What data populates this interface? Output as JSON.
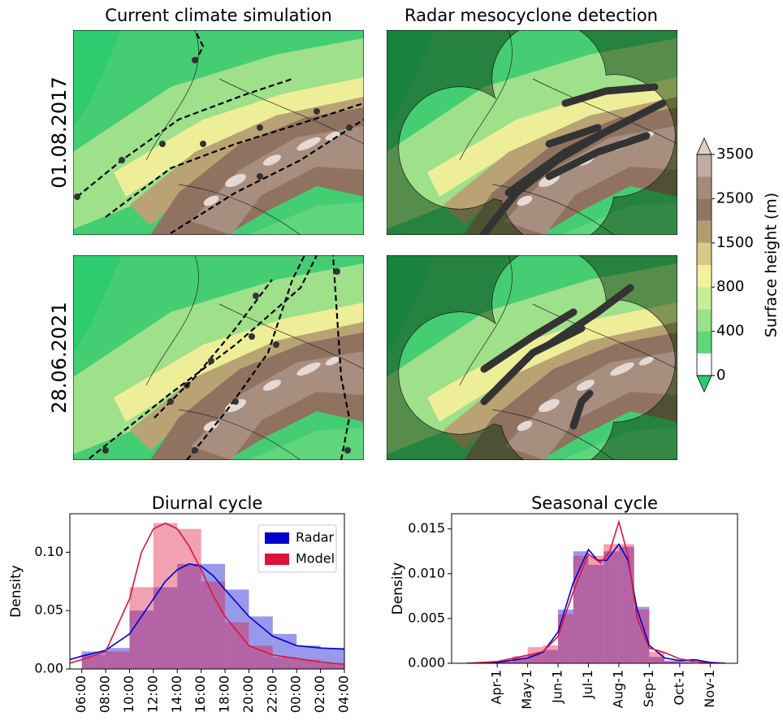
{
  "maps": {
    "column_titles": [
      "Current climate simulation",
      "Radar mesocyclone detection"
    ],
    "row_labels": [
      "01.08.2017",
      "28.06.2021"
    ]
  },
  "colorbar": {
    "label": "Surface height (m)",
    "ticks": [
      0,
      400,
      800,
      1500,
      2500,
      3500
    ],
    "colors": [
      "#2ecc6e",
      "#5fd67c",
      "#98e28a",
      "#c9ee98",
      "#f2f29a",
      "#d8c987",
      "#b49c72",
      "#927560",
      "#a58b7b",
      "#c2aba3",
      "#dccfcb"
    ]
  },
  "chart_data": [
    {
      "type": "histogram",
      "title": "Diurnal cycle",
      "y_label": "Density",
      "legend": "upper right",
      "xlim": [
        5,
        28
      ],
      "ylim": [
        0,
        0.133
      ],
      "xticks": [
        {
          "value": 6,
          "label": "06:00"
        },
        {
          "value": 8,
          "label": "08:00"
        },
        {
          "value": 10,
          "label": "10:00"
        },
        {
          "value": 12,
          "label": "12:00"
        },
        {
          "value": 14,
          "label": "14:00"
        },
        {
          "value": 16,
          "label": "16:00"
        },
        {
          "value": 18,
          "label": "18:00"
        },
        {
          "value": 20,
          "label": "20:00"
        },
        {
          "value": 22,
          "label": "22:00"
        },
        {
          "value": 24,
          "label": "00:00"
        },
        {
          "value": 26,
          "label": "02:00"
        },
        {
          "value": 28,
          "label": "04:00"
        }
      ],
      "yticks": [
        {
          "value": 0,
          "label": "0.00"
        },
        {
          "value": 0.05,
          "label": "0.05"
        },
        {
          "value": 0.1,
          "label": "0.10"
        }
      ],
      "bins": [
        6,
        8,
        10,
        12,
        14,
        16,
        18,
        20,
        22,
        24,
        26,
        28
      ],
      "series": [
        {
          "name": "Radar",
          "color": "#0000cd",
          "values": [
            0.015,
            0.018,
            0.05,
            0.07,
            0.09,
            0.09,
            0.068,
            0.045,
            0.03,
            0.02,
            0.018
          ],
          "kde_x": [
            5,
            6,
            8,
            10,
            12,
            13,
            14,
            15,
            16,
            17,
            18,
            20,
            22,
            24,
            26,
            28
          ],
          "kde_values": [
            0.008,
            0.011,
            0.016,
            0.03,
            0.06,
            0.075,
            0.085,
            0.09,
            0.088,
            0.08,
            0.068,
            0.045,
            0.028,
            0.02,
            0.018,
            0.017
          ]
        },
        {
          "name": "Model",
          "color": "#dc143c",
          "values": [
            0.012,
            0.015,
            0.07,
            0.125,
            0.12,
            0.075,
            0.04,
            0.02,
            0.01,
            0.008,
            0.005
          ],
          "kde_x": [
            5,
            6,
            8,
            10,
            11,
            12,
            13,
            14,
            15,
            16,
            17,
            18,
            20,
            22,
            24,
            26,
            28
          ],
          "kde_values": [
            0.005,
            0.008,
            0.015,
            0.06,
            0.1,
            0.12,
            0.125,
            0.12,
            0.105,
            0.085,
            0.063,
            0.045,
            0.02,
            0.012,
            0.009,
            0.006,
            0.004
          ]
        }
      ]
    },
    {
      "type": "histogram",
      "title": "Seasonal cycle",
      "y_label": "Density",
      "xlim": [
        2.5,
        11.9
      ],
      "ylim": [
        0,
        0.0167
      ],
      "xticks": [
        {
          "value": 4,
          "label": "Apr-1"
        },
        {
          "value": 5,
          "label": "May-1"
        },
        {
          "value": 6,
          "label": "Jun-1"
        },
        {
          "value": 7,
          "label": "Jul-1"
        },
        {
          "value": 8,
          "label": "Aug-1"
        },
        {
          "value": 9,
          "label": "Sep-1"
        },
        {
          "value": 10,
          "label": "Oct-1"
        },
        {
          "value": 11,
          "label": "Nov-1"
        }
      ],
      "yticks": [
        {
          "value": 0,
          "label": "0.000"
        },
        {
          "value": 0.005,
          "label": "0.005"
        },
        {
          "value": 0.01,
          "label": "0.010"
        },
        {
          "value": 0.015,
          "label": "0.015"
        }
      ],
      "bins": [
        4,
        4.5,
        5,
        5.5,
        6,
        6.5,
        7,
        7.5,
        8,
        8.5,
        9,
        9.5,
        10,
        10.5
      ],
      "series": [
        {
          "color": "#0000cd",
          "values": [
            0.0002,
            0.0006,
            0.001,
            0.0015,
            0.006,
            0.0125,
            0.011,
            0.0125,
            0.013,
            0.0063,
            0.0007,
            0.0003,
            0.0003
          ],
          "kde_x": [
            3,
            4,
            5,
            5.5,
            6,
            6.5,
            7,
            7.3,
            7.6,
            8,
            8.3,
            8.6,
            9,
            9.5,
            10,
            10.5,
            11,
            11.5
          ],
          "kde_values": [
            0,
            0.0001,
            0.0006,
            0.0012,
            0.0035,
            0.009,
            0.0127,
            0.0115,
            0.0115,
            0.0133,
            0.0115,
            0.006,
            0.002,
            0.0006,
            0.0003,
            0.0004,
            0.0001,
            0
          ]
        },
        {
          "color": "#dc143c",
          "values": [
            0.0002,
            0.0008,
            0.0018,
            0.002,
            0.0055,
            0.012,
            0.012,
            0.0133,
            0.0133,
            0.006,
            0.0013,
            0.0002,
            0
          ],
          "kde_x": [
            3,
            4,
            5,
            5.5,
            6,
            6.5,
            7,
            7.4,
            7.7,
            8,
            8.3,
            8.6,
            9,
            9.5,
            10,
            10.5,
            11,
            11.5
          ],
          "kde_values": [
            0,
            0.0002,
            0.0009,
            0.0013,
            0.003,
            0.008,
            0.0122,
            0.0112,
            0.0125,
            0.0158,
            0.012,
            0.005,
            0.0017,
            0.0012,
            0.0005,
            0.0002,
            0,
            0
          ]
        }
      ]
    }
  ]
}
